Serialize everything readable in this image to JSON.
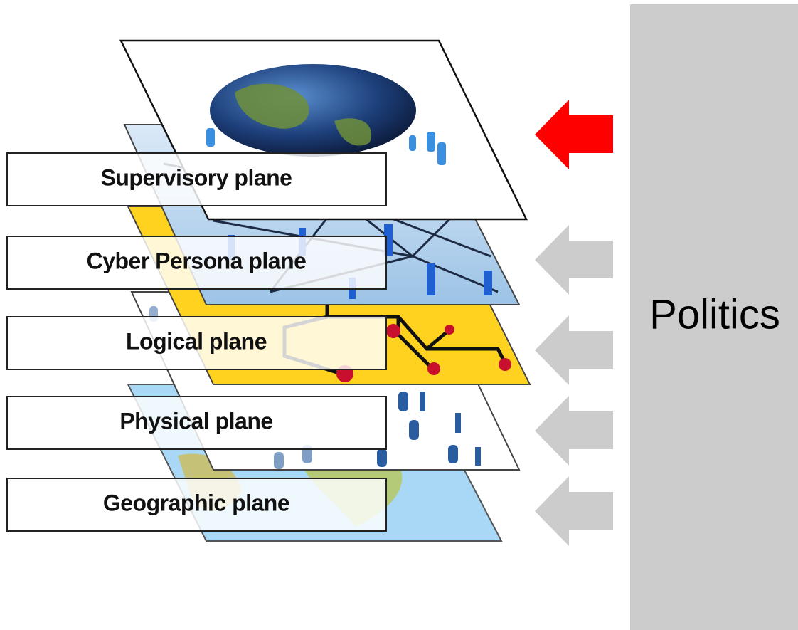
{
  "planes": [
    {
      "label": "Supervisory plane"
    },
    {
      "label": "Cyber Persona plane"
    },
    {
      "label": "Logical plane"
    },
    {
      "label": "Physical plane"
    },
    {
      "label": "Geographic plane"
    }
  ],
  "sidebar": {
    "label": "Politics"
  }
}
